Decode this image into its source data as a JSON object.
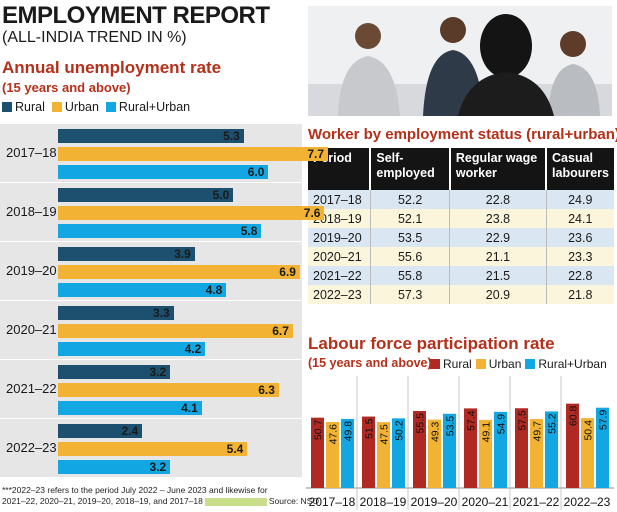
{
  "header": {
    "title": "EMPLOYMENT REPORT",
    "subtitle": "(ALL-INDIA TREND IN %)"
  },
  "unemployment": {
    "title": "Annual unemployment rate",
    "subtitle": "(15 years and above)",
    "legend": [
      "Rural",
      "Urban",
      "Rural+Urban"
    ]
  },
  "worker_table": {
    "title": "Worker by employment status (rural+urban)",
    "headers": [
      "Period",
      "Self-employed",
      "Regular wage worker",
      "Casual labourers"
    ],
    "rows": [
      [
        "2017–18",
        "52.2",
        "22.8",
        "24.9"
      ],
      [
        "2018–19",
        "52.1",
        "23.8",
        "24.1"
      ],
      [
        "2019–20",
        "53.5",
        "22.9",
        "23.6"
      ],
      [
        "2020–21",
        "55.6",
        "21.1",
        "23.3"
      ],
      [
        "2021–22",
        "55.8",
        "21.5",
        "22.8"
      ],
      [
        "2022–23",
        "57.3",
        "20.9",
        "21.8"
      ]
    ]
  },
  "lfpr": {
    "title": "Labour force participation rate",
    "subtitle": "(15 years and above)",
    "legend": [
      "Rural",
      "Urban",
      "Rural+Urban"
    ]
  },
  "footnote": {
    "line1": "***2022–23 refers to the period July 2022 – June 2023 and likewise for",
    "line2a": "2021–22, 2020–21, 2019–20, 2018–19, and 2017–18",
    "line2b": "Source: NSO"
  },
  "colors": {
    "rural": "#1d4f6e",
    "urban": "#f2b233",
    "rural_urban": "#12a6e3",
    "lfpr_rural": "#b02a23",
    "section_title": "#b5301a"
  },
  "chart_data": [
    {
      "type": "bar",
      "orientation": "horizontal",
      "title": "Annual unemployment rate",
      "subtitle": "(15 years and above)",
      "categories": [
        "2017–18",
        "2018–19",
        "2019–20",
        "2020–21",
        "2021–22",
        "2022–23"
      ],
      "series": [
        {
          "name": "Rural",
          "values": [
            5.3,
            5.0,
            3.9,
            3.3,
            3.2,
            2.4
          ]
        },
        {
          "name": "Urban",
          "values": [
            7.7,
            7.6,
            6.9,
            6.7,
            6.3,
            5.4
          ]
        },
        {
          "name": "Rural+Urban",
          "values": [
            6.0,
            5.8,
            4.8,
            4.2,
            4.1,
            3.2
          ]
        }
      ],
      "legend": "top-left",
      "grid": false
    },
    {
      "type": "bar",
      "title": "Labour force participation rate",
      "subtitle": "(15 years and above)",
      "categories": [
        "2017–18",
        "2018–19",
        "2019–20",
        "2020–21",
        "2021–22",
        "2022–23"
      ],
      "series": [
        {
          "name": "Rural",
          "values": [
            50.7,
            51.5,
            55.5,
            57.4,
            57.5,
            60.8
          ]
        },
        {
          "name": "Urban",
          "values": [
            47.6,
            47.5,
            49.3,
            49.1,
            49.7,
            50.4
          ]
        },
        {
          "name": "Rural+Urban",
          "values": [
            49.8,
            50.2,
            53.5,
            54.9,
            55.2,
            57.9
          ]
        }
      ],
      "legend": "top-left",
      "grid": false
    }
  ]
}
